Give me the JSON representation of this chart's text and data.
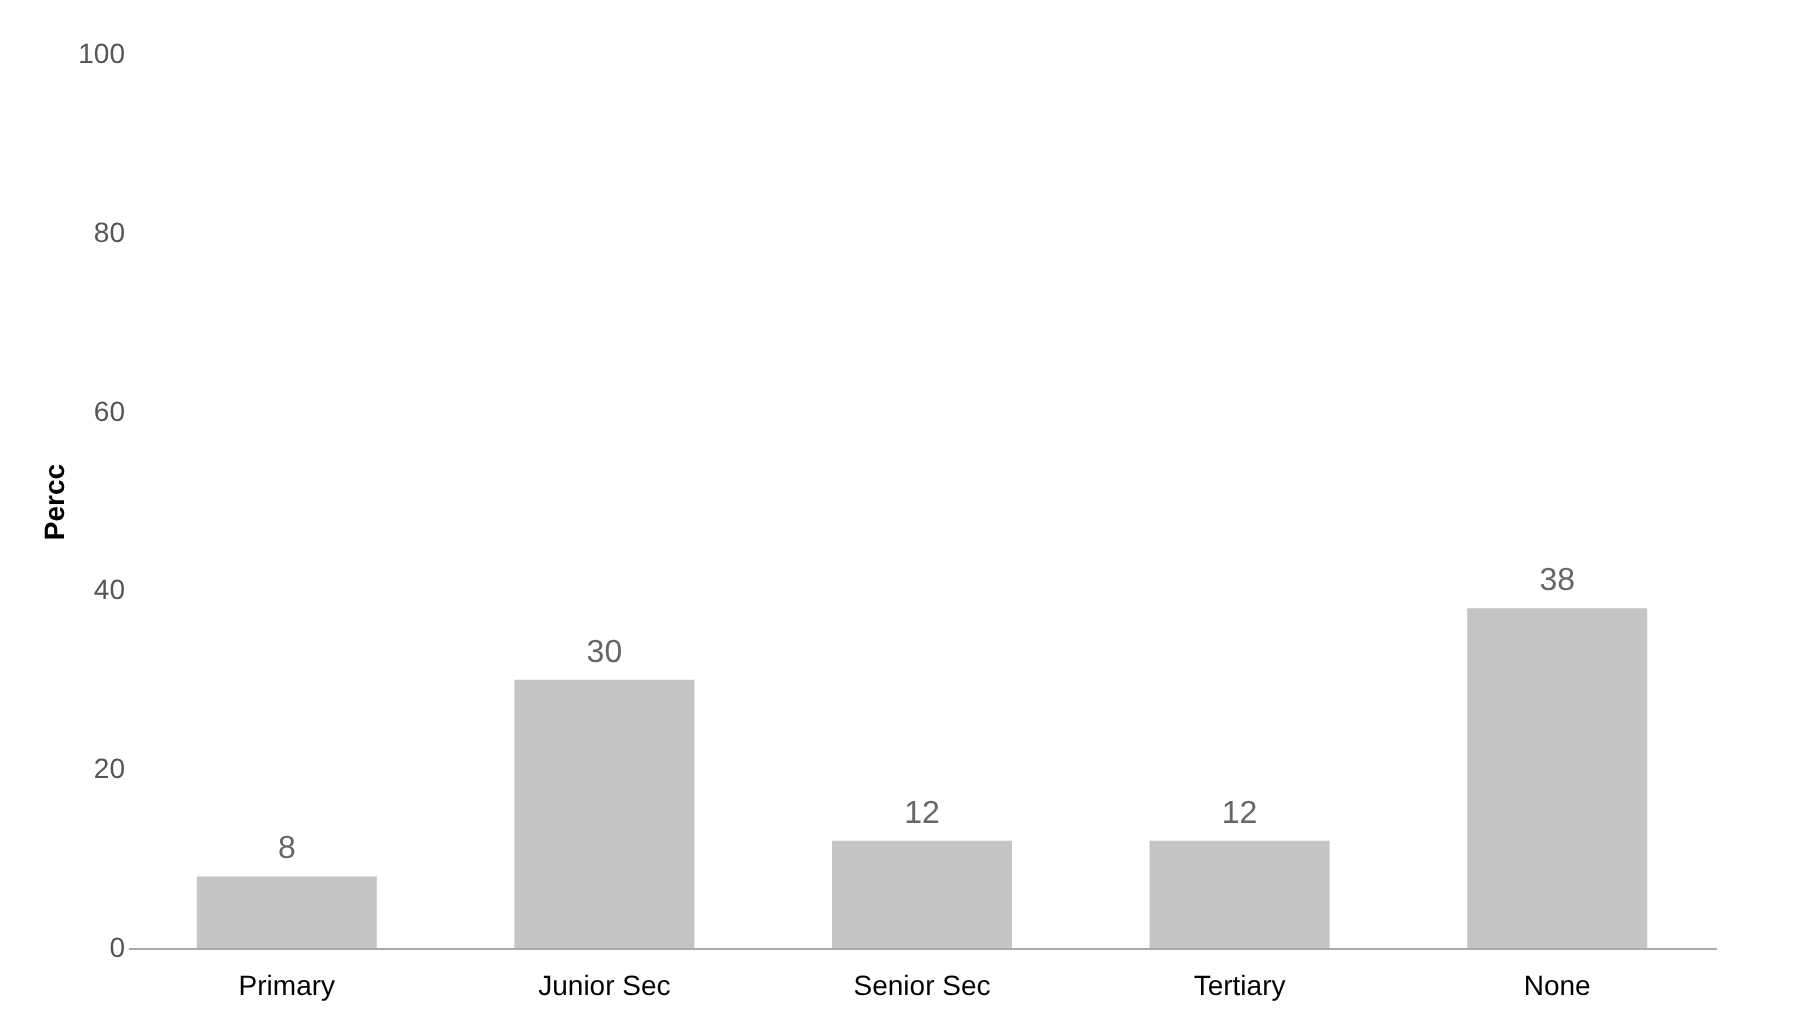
{
  "chart_data": {
    "type": "bar",
    "ylabel": "Percc",
    "categories": [
      "Primary",
      "Junior Sec",
      "Senior Sec",
      "Tertiary",
      "None"
    ],
    "values": [
      8,
      30,
      12,
      12,
      38
    ],
    "color": "#c4c4c4",
    "ylim": [
      0,
      100
    ],
    "yticks": [
      0,
      20,
      40,
      60,
      80,
      100
    ],
    "grid": false,
    "data_labels": true
  }
}
